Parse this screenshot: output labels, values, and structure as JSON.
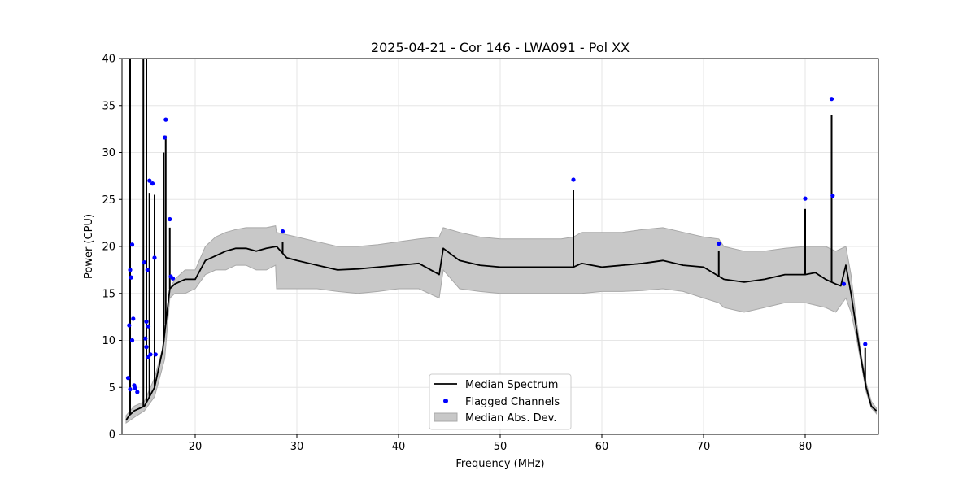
{
  "chart_data": {
    "type": "line",
    "title": "2025-04-21 - Cor 146 - LWA091 - Pol XX",
    "xlabel": "Frequency (MHz)",
    "ylabel": "Power (CPU)",
    "xlim": [
      12.8,
      87.2
    ],
    "ylim": [
      0,
      40
    ],
    "xticks": [
      20,
      30,
      40,
      50,
      60,
      70,
      80
    ],
    "yticks": [
      0,
      5,
      10,
      15,
      20,
      25,
      30,
      35,
      40
    ],
    "grid": true,
    "legend_position": "lower-center",
    "legend": [
      "Median Spectrum",
      "Flagged Channels",
      "Median Abs. Dev."
    ],
    "colors": {
      "median": "#000000",
      "flagged": "#0000ff",
      "mad_fill": "#c8c8c8",
      "mad_edge": "#a8a8a8"
    },
    "series": [
      {
        "name": "Median Spectrum",
        "x": [
          13.2,
          13.5,
          14.0,
          15.0,
          16.0,
          16.8,
          17.5,
          18.0,
          19.0,
          20.0,
          21.0,
          22.0,
          23.0,
          24.0,
          25.0,
          26.0,
          27.0,
          28.0,
          29.0,
          30.0,
          32.0,
          34.0,
          36.0,
          38.0,
          40.0,
          42.0,
          44.0,
          44.4,
          46.0,
          48.0,
          50.0,
          52.0,
          54.0,
          56.0,
          57.2,
          58.0,
          60.0,
          62.0,
          64.0,
          66.0,
          68.0,
          70.0,
          72.0,
          74.0,
          76.0,
          78.0,
          80.0,
          81.0,
          82.0,
          83.0,
          83.5,
          84.0,
          84.5,
          85.0,
          85.5,
          86.0,
          86.5,
          87.0
        ],
        "y": [
          1.5,
          2.0,
          2.5,
          3.0,
          5.0,
          9.0,
          15.5,
          16.0,
          16.5,
          16.5,
          18.5,
          19.0,
          19.5,
          19.8,
          19.8,
          19.5,
          19.8,
          20.0,
          18.8,
          18.5,
          18.0,
          17.5,
          17.6,
          17.8,
          18.0,
          18.2,
          17.0,
          19.8,
          18.5,
          18.0,
          17.8,
          17.8,
          17.8,
          17.8,
          17.8,
          18.2,
          17.8,
          18.0,
          18.2,
          18.5,
          18.0,
          17.8,
          16.5,
          16.2,
          16.5,
          17.0,
          17.0,
          17.2,
          16.5,
          16.0,
          15.8,
          18.0,
          15.0,
          11.5,
          8.0,
          5.0,
          3.0,
          2.5
        ]
      },
      {
        "name": "Median Abs. Dev.",
        "x": [
          13.2,
          14.0,
          15.0,
          16.0,
          17.0,
          17.5,
          18.0,
          19.0,
          20.0,
          21.0,
          22.0,
          23.0,
          24.0,
          25.0,
          26.0,
          27.0,
          27.9,
          28.0,
          30.0,
          32.0,
          34.0,
          36.0,
          38.0,
          40.0,
          42.0,
          44.0,
          44.4,
          46.0,
          48.0,
          50.0,
          52.0,
          54.0,
          56.0,
          57.2,
          58.0,
          60.0,
          62.0,
          64.0,
          66.0,
          68.0,
          70.0,
          71.5,
          72.0,
          74.0,
          76.0,
          78.0,
          80.0,
          82.0,
          83.0,
          84.0,
          84.5,
          85.0,
          85.5,
          86.0,
          86.5,
          87.0
        ],
        "upper": [
          2.0,
          3.0,
          3.5,
          6.0,
          10.0,
          15.5,
          16.5,
          17.5,
          17.5,
          20.0,
          21.0,
          21.5,
          21.8,
          22.0,
          22.0,
          22.0,
          22.2,
          21.5,
          21.0,
          20.5,
          20.0,
          20.0,
          20.2,
          20.5,
          20.8,
          21.0,
          22.0,
          21.5,
          21.0,
          20.8,
          20.8,
          20.8,
          20.8,
          21.0,
          21.5,
          21.5,
          21.5,
          21.8,
          22.0,
          21.5,
          21.0,
          20.8,
          20.0,
          19.5,
          19.5,
          19.8,
          20.0,
          20.0,
          19.5,
          20.0,
          17.0,
          12.5,
          8.5,
          5.5,
          3.5,
          2.8
        ],
        "lower": [
          1.2,
          1.8,
          2.5,
          4.0,
          8.0,
          14.5,
          15.0,
          15.0,
          15.5,
          17.0,
          17.5,
          17.5,
          18.0,
          18.0,
          17.5,
          17.5,
          18.0,
          15.5,
          15.5,
          15.5,
          15.2,
          15.0,
          15.2,
          15.5,
          15.5,
          14.5,
          17.5,
          15.5,
          15.2,
          15.0,
          15.0,
          15.0,
          15.0,
          15.0,
          15.0,
          15.2,
          15.2,
          15.3,
          15.5,
          15.2,
          14.5,
          14.0,
          13.5,
          13.0,
          13.5,
          14.0,
          14.0,
          13.5,
          13.0,
          14.5,
          13.0,
          10.5,
          7.5,
          4.5,
          2.8,
          2.2
        ]
      },
      {
        "name": "Flagged Channels",
        "x": [
          13.4,
          13.5,
          13.6,
          13.6,
          13.7,
          13.8,
          13.8,
          13.9,
          14.0,
          14.1,
          14.3,
          15.0,
          15.1,
          15.2,
          15.2,
          15.3,
          15.4,
          15.4,
          15.5,
          15.6,
          15.8,
          16.0,
          16.1,
          17.0,
          17.1,
          17.5,
          17.6,
          17.8,
          28.6,
          57.2,
          71.5,
          80.0,
          82.6,
          82.7,
          83.8,
          85.9
        ],
        "y": [
          6.0,
          11.6,
          17.5,
          4.8,
          16.7,
          20.2,
          10.0,
          12.3,
          5.2,
          4.9,
          4.5,
          18.3,
          10.2,
          9.3,
          12.0,
          17.5,
          8.2,
          11.5,
          27.0,
          8.5,
          26.7,
          18.8,
          8.5,
          31.6,
          33.5,
          22.9,
          16.8,
          16.6,
          21.6,
          27.1,
          20.3,
          25.1,
          35.7,
          25.4,
          16.0,
          9.6
        ]
      }
    ],
    "spikes": [
      {
        "x": 13.6,
        "peak": 40.0
      },
      {
        "x": 14.9,
        "peak": 40.0
      },
      {
        "x": 15.2,
        "peak": 40.0
      },
      {
        "x": 15.5,
        "peak": 25.7
      },
      {
        "x": 16.0,
        "peak": 25.5
      },
      {
        "x": 16.9,
        "peak": 30.0
      },
      {
        "x": 17.1,
        "peak": 31.8
      },
      {
        "x": 17.5,
        "peak": 22.0
      },
      {
        "x": 28.6,
        "peak": 20.5
      },
      {
        "x": 57.2,
        "peak": 26.0
      },
      {
        "x": 71.5,
        "peak": 19.5
      },
      {
        "x": 80.0,
        "peak": 24.0
      },
      {
        "x": 82.6,
        "peak": 34.0
      },
      {
        "x": 85.9,
        "peak": 9.2
      }
    ]
  }
}
